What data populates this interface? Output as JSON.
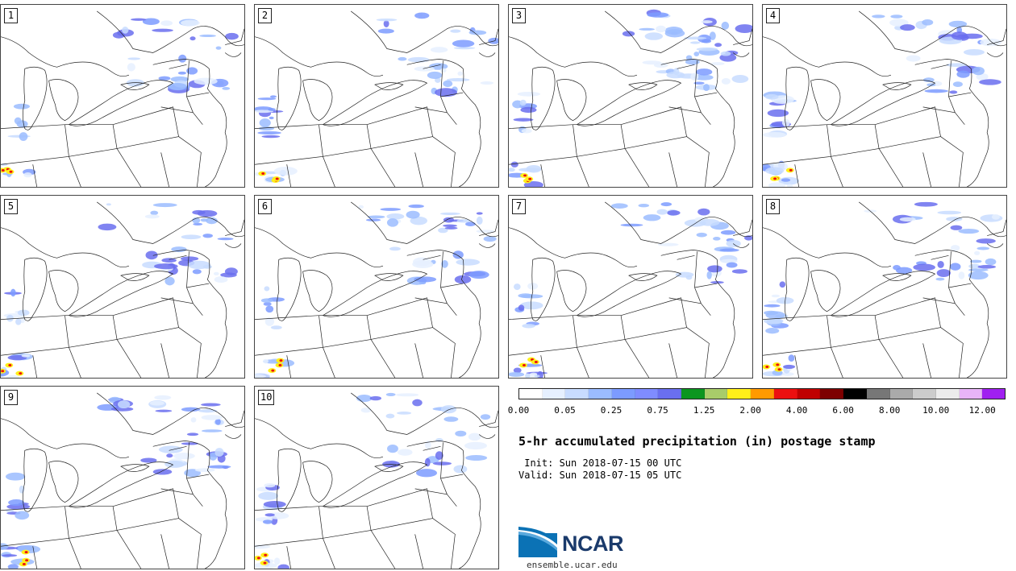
{
  "stamps": [
    {
      "label": "1"
    },
    {
      "label": "2"
    },
    {
      "label": "3"
    },
    {
      "label": "4"
    },
    {
      "label": "5"
    },
    {
      "label": "6"
    },
    {
      "label": "7"
    },
    {
      "label": "8"
    },
    {
      "label": "9"
    },
    {
      "label": "10"
    }
  ],
  "colorbar": {
    "colors": [
      "#ffffff",
      "#e6f0ff",
      "#c8dcff",
      "#9bbcff",
      "#7c9bff",
      "#7f8cff",
      "#6a6fef",
      "#0b9620",
      "#a8cc6a",
      "#ffef1a",
      "#ff9a00",
      "#ec1010",
      "#c00000",
      "#7d0000",
      "#000000",
      "#777777",
      "#aaaaaa",
      "#cccccc",
      "#ececec",
      "#e8b4f8",
      "#a020f0"
    ],
    "tick_labels": [
      "0.00",
      "0.05",
      "0.25",
      "0.75",
      "1.25",
      "2.00",
      "4.00",
      "6.00",
      "8.00",
      "10.00",
      "12.00"
    ]
  },
  "title": "5-hr accumulated precipitation (in) postage stamp",
  "init": " Init: Sun 2018-07-15 00 UTC",
  "valid": "Valid: Sun 2018-07-15 05 UTC",
  "logo_text": "NCAR",
  "url": "ensemble.ucar.edu"
}
